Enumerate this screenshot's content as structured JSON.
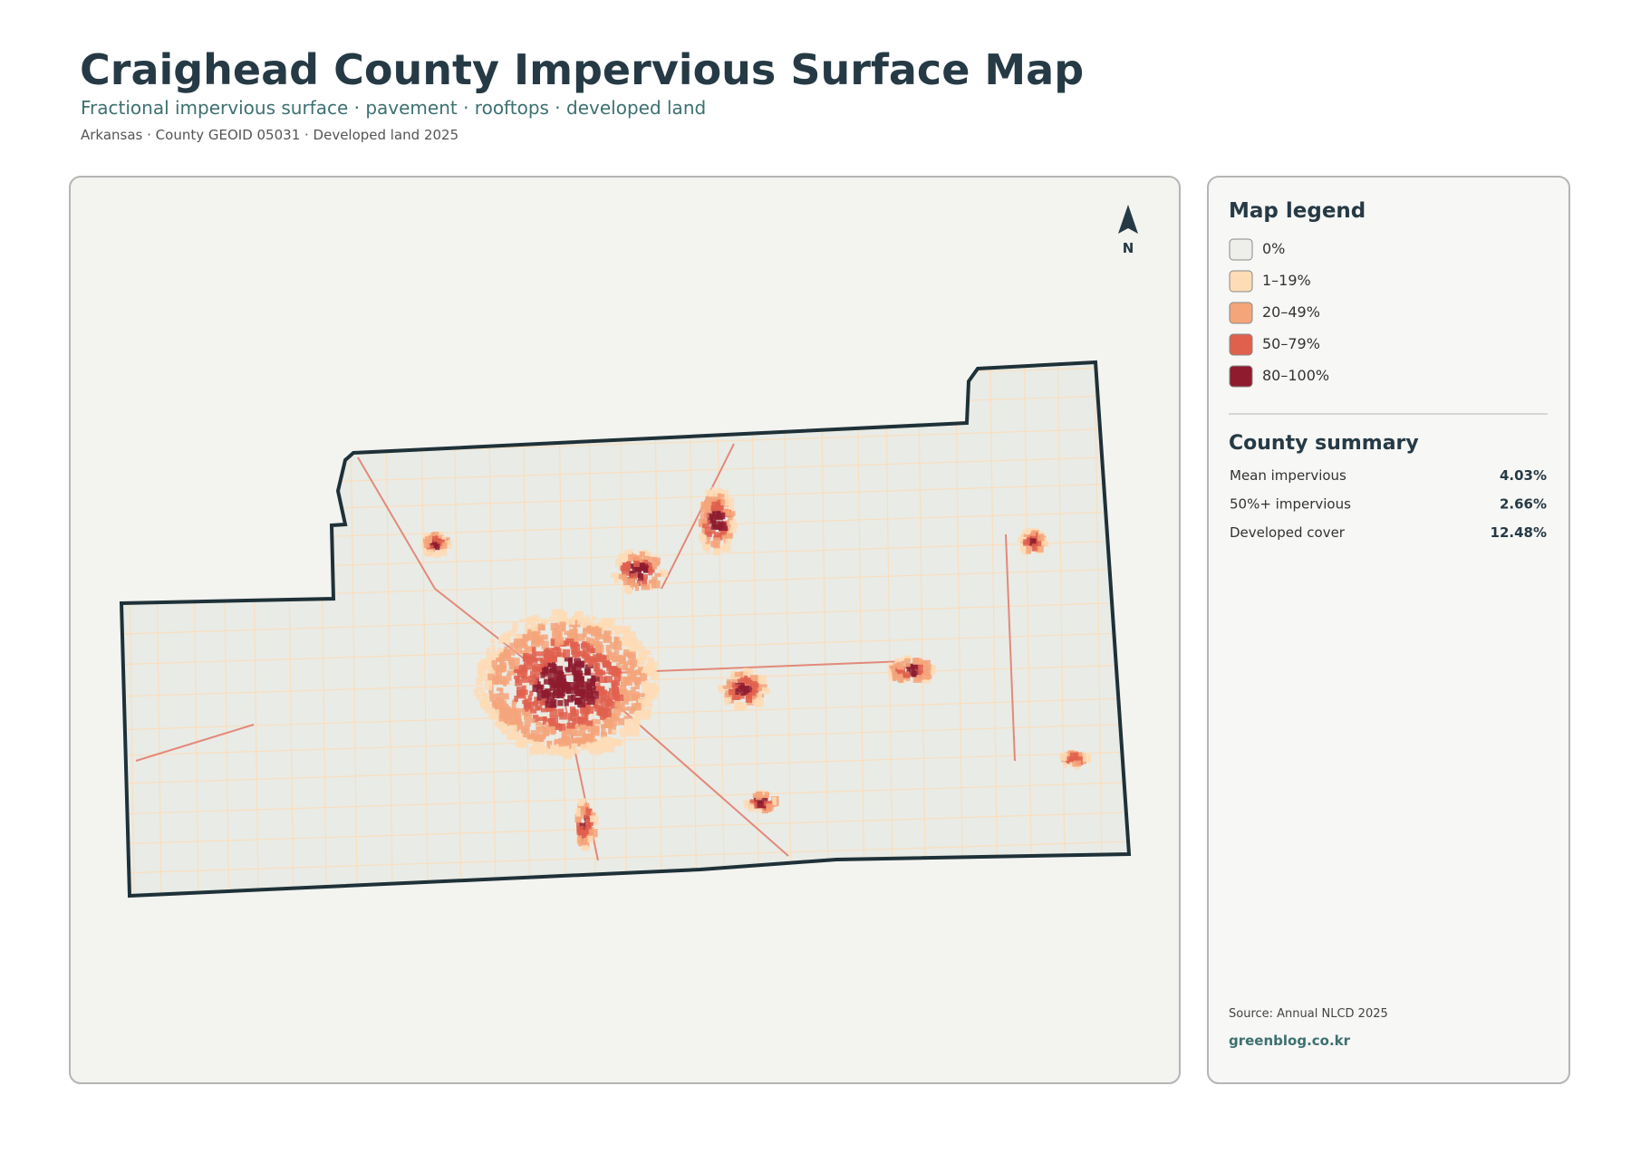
{
  "header": {
    "title": "Craighead County Impervious Surface Map",
    "subtitle": "Fractional impervious surface · pavement · rooftops · developed land",
    "meta": "Arkansas · County GEOID 05031 · Developed land 2025"
  },
  "map": {
    "north_label": "N"
  },
  "legend": {
    "title": "Map legend",
    "items": [
      {
        "label": "0%",
        "color": "#eeeeea"
      },
      {
        "label": "1–19%",
        "color": "#fddcb6"
      },
      {
        "label": "20–49%",
        "color": "#f4a57a"
      },
      {
        "label": "50–79%",
        "color": "#e0604e"
      },
      {
        "label": "80–100%",
        "color": "#8e1b2e"
      }
    ]
  },
  "summary": {
    "title": "County summary",
    "rows": [
      {
        "label": "Mean impervious",
        "value": "4.03%"
      },
      {
        "label": "50%+ impervious",
        "value": "2.66%"
      },
      {
        "label": "Developed cover",
        "value": "12.48%"
      }
    ]
  },
  "footer": {
    "source": "Source: Annual NLCD 2025",
    "site": "greenblog.co.kr"
  }
}
